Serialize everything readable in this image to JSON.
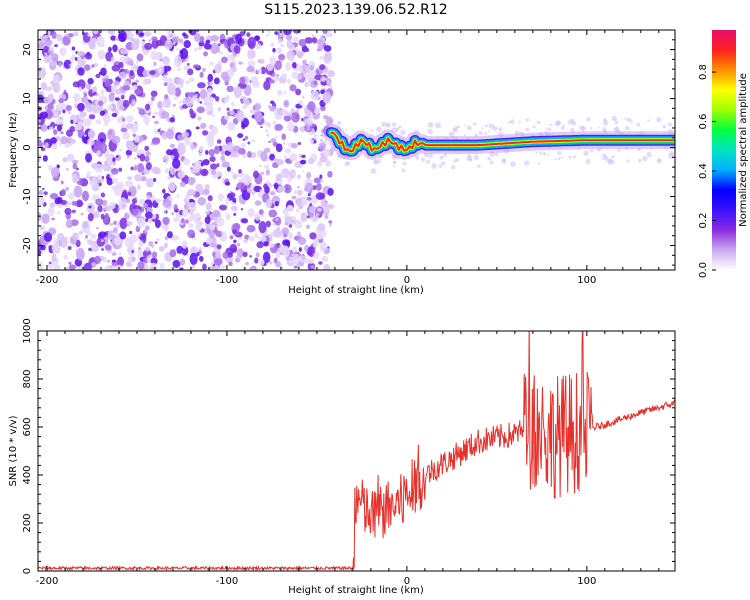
{
  "title": "S115.2023.139.06.52.R12",
  "chart_data": [
    {
      "type": "heatmap",
      "xlabel": "Height of straight line (km)",
      "ylabel": "Frequency (Hz)",
      "xlim": [
        -205,
        149
      ],
      "ylim": [
        -25,
        24
      ],
      "xticks": [
        -200,
        -100,
        0,
        100
      ],
      "yticks": [
        -20,
        -10,
        0,
        10,
        20
      ],
      "colorbar": {
        "label": "Normalized spectral amplitude",
        "range": [
          0,
          0.97
        ],
        "ticks": [
          0.0,
          0.2,
          0.4,
          0.6,
          0.8
        ],
        "colors": [
          "#ffffff",
          "#c9a8f0",
          "#8a2be2",
          "#3a10ff",
          "#0000ff",
          "#00b0ff",
          "#00e5c0",
          "#00ff40",
          "#a0ff00",
          "#ffff00",
          "#ff9000",
          "#ff2020",
          "#e8106a"
        ]
      },
      "noise_region_x": [
        -205,
        -42
      ],
      "signal_ridge": [
        {
          "x": -42,
          "y": 3.5
        },
        {
          "x": -38,
          "y": 1.5
        },
        {
          "x": -32,
          "y": -1.0
        },
        {
          "x": -25,
          "y": 1.5
        },
        {
          "x": -18,
          "y": -0.5
        },
        {
          "x": -10,
          "y": 1.5
        },
        {
          "x": -4,
          "y": 0.0
        },
        {
          "x": 0,
          "y": -0.5
        },
        {
          "x": 5,
          "y": 1.0
        },
        {
          "x": 10,
          "y": 0.5
        },
        {
          "x": 40,
          "y": 0.5
        },
        {
          "x": 70,
          "y": 1.2
        },
        {
          "x": 100,
          "y": 1.5
        },
        {
          "x": 149,
          "y": 1.5
        }
      ]
    },
    {
      "type": "line",
      "xlabel": "Height of straight line (km)",
      "ylabel": "SNR (10 * v/v)",
      "xlim": [
        -205,
        149
      ],
      "ylim": [
        0,
        1000
      ],
      "xticks": [
        -200,
        -100,
        0,
        100
      ],
      "yticks": [
        0,
        200,
        400,
        600,
        800,
        1000
      ],
      "color": "#e8302a",
      "envelope": [
        {
          "x": -205,
          "y": 12
        },
        {
          "x": -30,
          "y": 12
        },
        {
          "x": -28,
          "y": 300
        },
        {
          "x": -20,
          "y": 220
        },
        {
          "x": 0,
          "y": 300
        },
        {
          "x": 10,
          "y": 400
        },
        {
          "x": 25,
          "y": 470
        },
        {
          "x": 40,
          "y": 540
        },
        {
          "x": 60,
          "y": 570
        },
        {
          "x": 70,
          "y": 600
        },
        {
          "x": 80,
          "y": 560
        },
        {
          "x": 100,
          "y": 590
        },
        {
          "x": 110,
          "y": 610
        },
        {
          "x": 130,
          "y": 660
        },
        {
          "x": 149,
          "y": 700
        }
      ]
    }
  ]
}
